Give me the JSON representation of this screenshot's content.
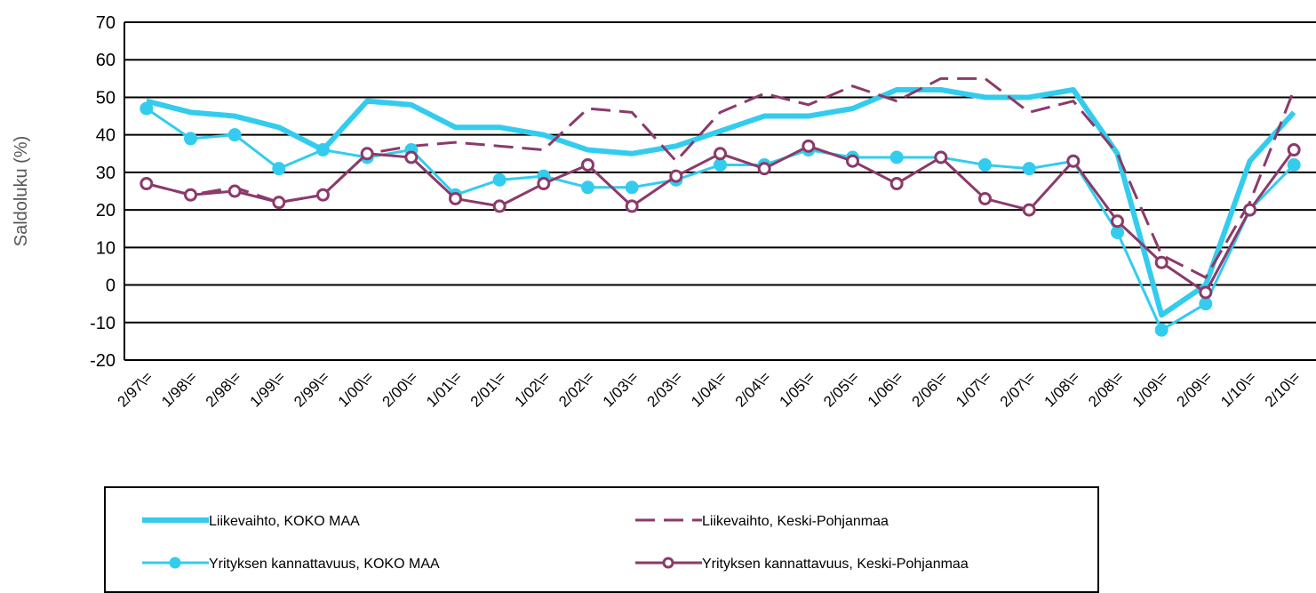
{
  "chart_data": {
    "type": "line",
    "y_label": "Saldoluku (%)",
    "categories": [
      "2/97\\=",
      "1/98\\=",
      "2/98\\=",
      "1/99\\=",
      "2/99\\=",
      "1/00\\=",
      "2/00\\=",
      "1/01\\=",
      "2/01\\=",
      "1/02\\=",
      "2/02\\=",
      "1/03\\=",
      "2/03\\=",
      "1/04\\=",
      "2/04\\=",
      "1/05\\=",
      "2/05\\=",
      "1/06\\=",
      "2/06\\=",
      "1/07\\=",
      "2/07\\=",
      "1/08\\=",
      "2/08\\=",
      "1/09\\=",
      "2/09\\=",
      "1/10\\=",
      "2/10\\="
    ],
    "series": [
      {
        "name": "Liikevaihto, KOKO MAA",
        "color": "#33ccee",
        "width": 6,
        "dash": "none",
        "marker": "none",
        "values": [
          49,
          46,
          45,
          42,
          36,
          49,
          48,
          42,
          42,
          40,
          36,
          35,
          37,
          41,
          45,
          45,
          47,
          52,
          52,
          50,
          50,
          52,
          35,
          -8,
          0,
          33,
          46
        ]
      },
      {
        "name": "Liikevaihto, Keski-Pohjanmaa",
        "color": "#8b3a6a",
        "width": 3,
        "dash": "22 10",
        "marker": "none",
        "values": [
          27,
          24,
          26,
          22,
          24,
          35,
          37,
          38,
          37,
          36,
          47,
          46,
          33,
          46,
          51,
          48,
          53,
          49,
          55,
          55,
          46,
          49,
          35,
          8,
          2,
          22,
          52
        ]
      },
      {
        "name": "Yrityksen kannattavuus, KOKO MAA",
        "color": "#33ccee",
        "width": 3,
        "dash": "none",
        "marker": "filled",
        "values": [
          47,
          39,
          40,
          31,
          36,
          34,
          36,
          24,
          28,
          29,
          26,
          26,
          28,
          32,
          32,
          36,
          34,
          34,
          34,
          32,
          31,
          33,
          14,
          -12,
          -5,
          20,
          32
        ]
      },
      {
        "name": "Yrityksen kannattavuus, Keski-Pohjanmaa",
        "color": "#8b3a6a",
        "width": 3,
        "dash": "none",
        "marker": "open",
        "values": [
          27,
          24,
          25,
          22,
          24,
          35,
          34,
          23,
          21,
          27,
          32,
          21,
          29,
          35,
          31,
          37,
          33,
          27,
          34,
          23,
          20,
          33,
          17,
          6,
          -2,
          20,
          36
        ]
      }
    ],
    "ylim": [
      -20,
      70
    ],
    "yticks": [
      -20,
      -10,
      0,
      10,
      20,
      30,
      40,
      50,
      60,
      70
    ],
    "grid": true,
    "legend": "bottom"
  }
}
